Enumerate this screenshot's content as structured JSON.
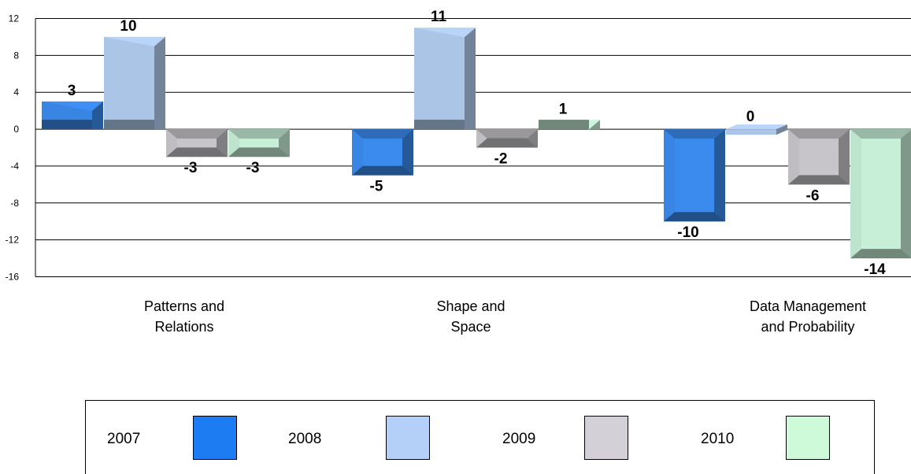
{
  "chart_data": {
    "type": "bar",
    "categories": [
      "Patterns and Relations",
      "Shape and Space",
      "Data Management and Probability"
    ],
    "category_lines": [
      [
        "Patterns and",
        "Relations"
      ],
      [
        "Shape and",
        "Space"
      ],
      [
        "Data Management",
        "and Probability"
      ]
    ],
    "series": [
      {
        "name": "2007",
        "values": [
          3,
          -5,
          -10
        ],
        "color": "#3d8ff5"
      },
      {
        "name": "2008",
        "values": [
          10,
          11,
          0
        ],
        "color": "#b8d4f8"
      },
      {
        "name": "2009",
        "values": [
          -3,
          -2,
          -6
        ],
        "color": "#cdcbcf"
      },
      {
        "name": "2010",
        "values": [
          -3,
          1,
          -14
        ],
        "color": "#cdf5de"
      }
    ],
    "y_ticks": [
      12,
      8,
      4,
      0,
      -4,
      -8,
      -12,
      -16
    ],
    "ylim": [
      -16,
      12
    ],
    "grid": true,
    "legend_position": "bottom",
    "title": "",
    "xlabel": "",
    "ylabel": ""
  },
  "legend": [
    {
      "label": "2007",
      "color": "#1d7cf2"
    },
    {
      "label": "2008",
      "color": "#b4d0f8"
    },
    {
      "label": "2009",
      "color": "#d4d0d8"
    },
    {
      "label": "2010",
      "color": "#cefad9"
    }
  ]
}
